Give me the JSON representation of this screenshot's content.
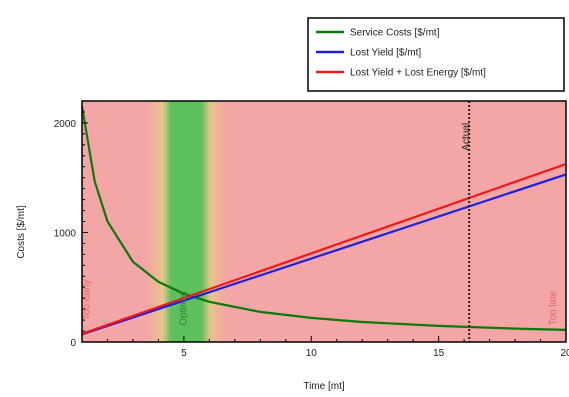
{
  "chart_data": {
    "type": "line",
    "title": "",
    "xlabel": "Time [mt]",
    "ylabel": "Costs [$/mt]",
    "xlim": [
      1,
      20
    ],
    "ylim": [
      0,
      2200
    ],
    "x_ticks": [
      5,
      10,
      15,
      20
    ],
    "y_ticks": [
      0,
      1000,
      2000
    ],
    "x_tick_labels": [
      "5",
      "10",
      "15",
      "20"
    ],
    "y_tick_labels": [
      "0",
      "1000",
      "2000"
    ],
    "grid": false,
    "legend_position": "top-right",
    "series": [
      {
        "name": "Service Costs [$/mt]",
        "color": "#0a7a0a",
        "x": [
          1,
          1.5,
          2,
          3,
          4,
          5,
          6,
          8,
          10,
          12,
          15,
          18,
          20
        ],
        "y": [
          2150,
          1467,
          1100,
          733,
          550,
          440,
          367,
          275,
          220,
          183,
          147,
          122,
          110
        ]
      },
      {
        "name": "Lost Yield [$/mt]",
        "color": "#1f1fe0",
        "x": [
          1,
          20
        ],
        "y": [
          70,
          1530
        ]
      },
      {
        "name": "Lost Yield + Lost Energy [$/mt]",
        "color": "#f01818",
        "x": [
          1,
          20
        ],
        "y": [
          75,
          1625
        ]
      }
    ],
    "regions": {
      "optimal_x": [
        4.5,
        5.7
      ],
      "background_color": "#f4a5a5",
      "optimal_color": "#5cc05c"
    },
    "annotations": [
      {
        "text": "Too early",
        "x": 1.3,
        "y": 200
      },
      {
        "text": "Optimal",
        "x": 5.1,
        "y": 150
      },
      {
        "text": "Too late",
        "x": 19.6,
        "y": 150
      },
      {
        "text": "Actual",
        "x": 16.2,
        "y": 2000
      }
    ],
    "actual_x": 16.2
  }
}
